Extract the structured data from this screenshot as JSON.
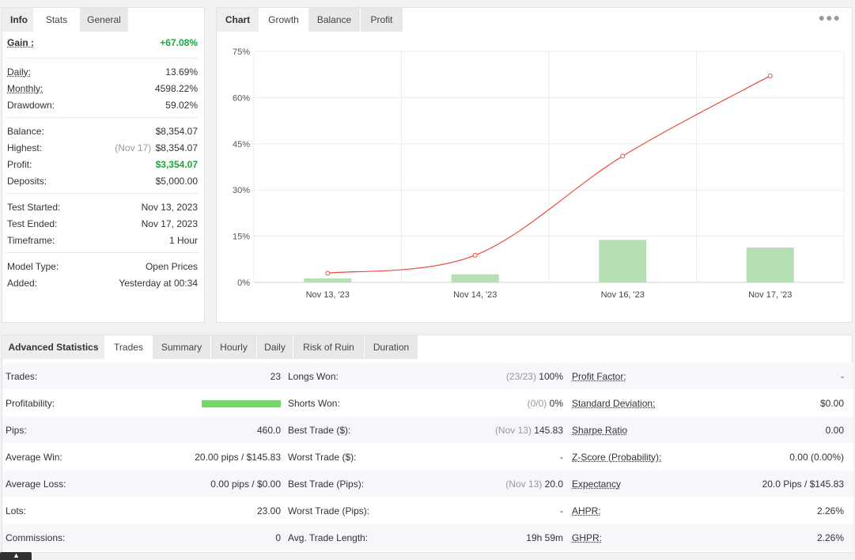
{
  "info_panel": {
    "tabs": [
      "Info",
      "Stats",
      "General"
    ],
    "gain": {
      "label": "Gain :",
      "value": "+67.08%"
    },
    "daily": {
      "label": "Daily:",
      "value": "13.69%"
    },
    "monthly": {
      "label": "Monthly:",
      "value": "4598.22%"
    },
    "drawdown": {
      "label": "Drawdown:",
      "value": "59.02%"
    },
    "balance": {
      "label": "Balance:",
      "value": "$8,354.07"
    },
    "highest": {
      "label": "Highest:",
      "note": "(Nov 17)",
      "value": "$8,354.07"
    },
    "profit": {
      "label": "Profit:",
      "value": "$3,354.07"
    },
    "deposits": {
      "label": "Deposits:",
      "value": "$5,000.00"
    },
    "test_started": {
      "label": "Test Started:",
      "value": "Nov 13, 2023"
    },
    "test_ended": {
      "label": "Test Ended:",
      "value": "Nov 17, 2023"
    },
    "timeframe": {
      "label": "Timeframe:",
      "value": "1 Hour"
    },
    "model_type": {
      "label": "Model Type:",
      "value": "Open Prices"
    },
    "added": {
      "label": "Added:",
      "value": "Yesterday at 00:34"
    }
  },
  "chart_panel": {
    "tabs": [
      "Chart",
      "Growth",
      "Balance",
      "Profit"
    ],
    "menu_icon": "more-dots-icon"
  },
  "chart_data": {
    "type": "line",
    "categories": [
      "Nov 13, '23",
      "Nov 14, '23",
      "Nov 16, '23",
      "Nov 17, '23"
    ],
    "y_ticks": [
      "75%",
      "60%",
      "45%",
      "30%",
      "15%",
      "0%"
    ],
    "ylim": [
      0,
      75
    ],
    "grid": true,
    "series": [
      {
        "type": "line",
        "color": "#e74c3c",
        "values": [
          3.0,
          8.8,
          41.0,
          67.08
        ]
      },
      {
        "type": "bar",
        "color": "#b5e0b5",
        "values": [
          1.3,
          2.6,
          13.8,
          11.3
        ]
      }
    ]
  },
  "advanced": {
    "tabs": [
      "Advanced Statistics",
      "Trades",
      "Summary",
      "Hourly",
      "Daily",
      "Risk of Ruin",
      "Duration"
    ],
    "profitability_fraction": 1.0,
    "rows": [
      {
        "c1": {
          "label": "Trades:",
          "value": "23"
        },
        "c2": {
          "label": "Longs Won:",
          "note": "(23/23)",
          "value": "100%"
        },
        "c3": {
          "label": "Profit Factor:",
          "value": "-"
        }
      },
      {
        "c1": {
          "label": "Profitability:",
          "value": ""
        },
        "c2": {
          "label": "Shorts Won:",
          "note": "(0/0)",
          "value": "0%"
        },
        "c3": {
          "label": "Standard Deviation:",
          "value": "$0.00"
        }
      },
      {
        "c1": {
          "label": "Pips:",
          "value": "460.0"
        },
        "c2": {
          "label": "Best Trade ($):",
          "note": "(Nov 13)",
          "value": "145.83"
        },
        "c3": {
          "label": "Sharpe Ratio",
          "value": "0.00"
        }
      },
      {
        "c1": {
          "label": "Average Win:",
          "value": "20.00 pips / $145.83"
        },
        "c2": {
          "label": "Worst Trade ($):",
          "note": "",
          "value": "-"
        },
        "c3": {
          "label": "Z-Score (Probability):",
          "value": "0.00 (0.00%)"
        }
      },
      {
        "c1": {
          "label": "Average Loss:",
          "value": "0.00 pips / $0.00"
        },
        "c2": {
          "label": "Best Trade (Pips):",
          "note": "(Nov 13)",
          "value": "20.0"
        },
        "c3": {
          "label": "Expectancy",
          "value": "20.0 Pips / $145.83"
        }
      },
      {
        "c1": {
          "label": "Lots:",
          "value": "23.00"
        },
        "c2": {
          "label": "Worst Trade (Pips):",
          "note": "",
          "value": "-"
        },
        "c3": {
          "label": "AHPR:",
          "value": "2.26%"
        }
      },
      {
        "c1": {
          "label": "Commissions:",
          "value": "0"
        },
        "c2": {
          "label": "Avg. Trade Length:",
          "note": "",
          "value": "19h 59m"
        },
        "c3": {
          "label": "GHPR:",
          "value": "2.26%"
        }
      }
    ]
  },
  "footer": {
    "scroll_top_icon": "chevron-up-icon"
  }
}
